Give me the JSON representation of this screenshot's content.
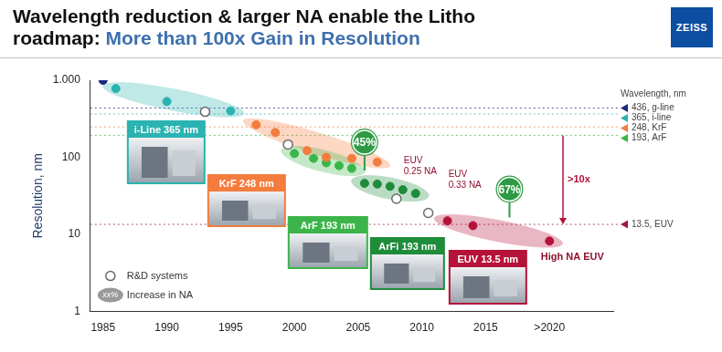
{
  "chart_data": {
    "type": "scatter",
    "title": "Wavelength reduction & larger NA enable the Litho\nroadmap:",
    "subtitle": "More than 100x Gain in Resolution",
    "y_label": "Resolution, nm",
    "log": "y",
    "grid": false,
    "legend": "lower left",
    "xlim": [
      1984,
      2025
    ],
    "xticks": [
      1985,
      1990,
      1995,
      2000,
      2005,
      2010,
      2015,
      {
        "value": 2020,
        "label": ">2020"
      }
    ],
    "ylim": [
      1,
      1000
    ],
    "yticks": [
      1,
      10,
      100,
      {
        "value": 1000,
        "label": "1.000"
      }
    ],
    "series": [
      {
        "color": "#1b2a7a",
        "marker": "circle",
        "x": [
          1985
        ],
        "values": [
          1000
        ]
      },
      {
        "name": "i-Line 365 nm",
        "color": "#2ab3b1",
        "marker": "circle",
        "x": [
          1986,
          1990,
          1995
        ],
        "values": [
          780,
          530,
          400
        ]
      },
      {
        "name": "KrF 248 nm",
        "color": "#f47c3c",
        "marker": "circle",
        "x": [
          1997,
          1998.5,
          2001,
          2002.5,
          2004.5,
          2006.5
        ],
        "values": [
          265,
          210,
          122,
          100,
          97,
          87
        ]
      },
      {
        "name": "ArF 193 nm",
        "color": "#3bb54a",
        "marker": "circle",
        "x": [
          2000,
          2001.5,
          2002.5,
          2003.5,
          2004.5
        ],
        "values": [
          112,
          97,
          85,
          78,
          72
        ]
      },
      {
        "name": "ArFi 193 nm",
        "color": "#1e8c3a",
        "marker": "circle",
        "x": [
          2005.5,
          2006.5,
          2007.5,
          2008.5,
          2009.5
        ],
        "values": [
          46,
          45,
          42,
          38,
          34
        ]
      },
      {
        "name": "EUV 13.5 nm",
        "color": "#b5123a",
        "marker": "circle",
        "x": [
          2012,
          2014,
          2020
        ],
        "values": [
          15,
          13,
          8.2
        ]
      },
      {
        "name": "R&D systems",
        "color": "#ffffff",
        "marker": "circle_open",
        "x": [
          1993,
          1999.5,
          2008,
          2010.5
        ],
        "values": [
          390,
          147,
          29,
          19
        ]
      }
    ],
    "wavelength_title": "Wavelength, nm",
    "wavelengths": [
      {
        "value": 436,
        "label": "436, g-line",
        "color": "#1b2a7a"
      },
      {
        "value": 365,
        "label": "365, i-line",
        "color": "#2ab3b1"
      },
      {
        "value": 248,
        "label": "248, KrF",
        "color": "#f47c3c"
      },
      {
        "value": 193,
        "label": "193, ArF",
        "color": "#3bb54a"
      },
      {
        "value": 13.5,
        "label": "13.5, EUV",
        "color": "#a3163b"
      }
    ],
    "annotations": [
      {
        "text": "45%"
      },
      {
        "text": "EUV\n0.25 NA"
      },
      {
        "text": "EUV\n0.33 NA"
      },
      {
        "text": "67%"
      },
      {
        "text": ">10x"
      },
      {
        "text": "High NA EUV"
      }
    ],
    "na_key": {
      "symbol": "xx%",
      "text": "Increase in NA"
    }
  },
  "logo": "ZEISS"
}
